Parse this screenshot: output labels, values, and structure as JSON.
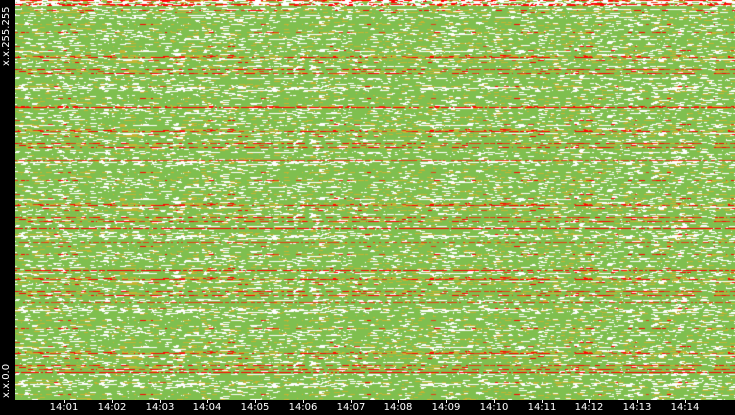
{
  "chart_data": {
    "type": "heatmap",
    "title": "",
    "xlabel": "",
    "ylabel": "",
    "y_labels": {
      "top": "x.x.255.255",
      "bottom": "x.x.0.0"
    },
    "x_ticks": [
      "14:01",
      "14:02",
      "14:03",
      "14:04",
      "14:05",
      "14:06",
      "14:07",
      "14:08",
      "14:09",
      "14:10",
      "14:11",
      "14:12",
      "14:13",
      "14:14"
    ],
    "grid": false,
    "legend": "none",
    "colors": {
      "background": "#000000",
      "base": "#7fbf4f",
      "low": "#ffffff",
      "mid": "#c8b432",
      "high": "#e63c14",
      "peak": "#ff0000"
    }
  }
}
